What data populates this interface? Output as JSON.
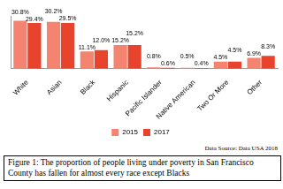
{
  "chart_data": {
    "type": "bar",
    "categories": [
      "White",
      "Asian",
      "Black",
      "Hispanic",
      "Pacific Islander",
      "Native American",
      "Two Or More",
      "Other"
    ],
    "series": [
      {
        "name": "2015",
        "color": "#f4846f",
        "values": [
          30.8,
          30.2,
          11.1,
          15.2,
          0.8,
          0.5,
          4.5,
          6.9
        ],
        "value_labels": [
          "30.8%",
          "30.2%",
          "11.1%",
          "15.2%",
          "0.8%",
          "0.5%",
          "4.5%",
          "6.9%"
        ]
      },
      {
        "name": "2017",
        "color": "#e8432d",
        "values": [
          29.4,
          29.5,
          12.0,
          15.2,
          0.6,
          0.4,
          4.5,
          8.3
        ],
        "value_labels": [
          "29.4%",
          "29.5%",
          "12.0%",
          "15.2%",
          "0.6%",
          "0.4%",
          "4.5%",
          "8.3%"
        ]
      }
    ],
    "ylim": [
      0,
      34
    ],
    "grid": false,
    "tick_labels": "x",
    "legend": "bottom",
    "data_labels": true,
    "annotations": [
      "Data Source: Data USA 2018"
    ],
    "caption": "Figure 1: The proportion of people living under poverty in San Francisco County has fallen for almost every race except Blacks"
  }
}
